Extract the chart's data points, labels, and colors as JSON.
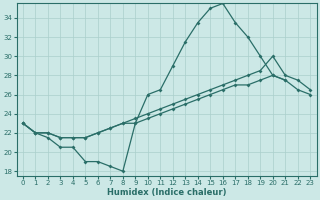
{
  "xlabel": "Humidex (Indice chaleur)",
  "xlim": [
    -0.5,
    23.5
  ],
  "ylim": [
    17.5,
    35.5
  ],
  "yticks": [
    18,
    20,
    22,
    24,
    26,
    28,
    30,
    32,
    34
  ],
  "xticks": [
    0,
    1,
    2,
    3,
    4,
    5,
    6,
    7,
    8,
    9,
    10,
    11,
    12,
    13,
    14,
    15,
    16,
    17,
    18,
    19,
    20,
    21,
    22,
    23
  ],
  "bg_color": "#cce8e6",
  "grid_color": "#aacfcc",
  "line_color": "#2a6e68",
  "line1_x": [
    0,
    1,
    2,
    3,
    4,
    5,
    6,
    7,
    8,
    9,
    10,
    11,
    12,
    13,
    14,
    15,
    16,
    17,
    18,
    19,
    20,
    21
  ],
  "line1_y": [
    23.0,
    22.0,
    21.5,
    20.5,
    20.5,
    19.0,
    19.0,
    18.5,
    18.0,
    23.0,
    26.0,
    26.5,
    29.0,
    31.5,
    33.5,
    35.0,
    35.5,
    33.5,
    32.0,
    30.0,
    28.0,
    27.5
  ],
  "line2_x": [
    0,
    1,
    2,
    3,
    4,
    5,
    6,
    7,
    8,
    9,
    10,
    11,
    12,
    13,
    14,
    15,
    16,
    17,
    18,
    19,
    20,
    21,
    22,
    23
  ],
  "line2_y": [
    23.0,
    22.0,
    22.0,
    21.5,
    21.5,
    21.5,
    22.0,
    22.5,
    23.0,
    23.5,
    24.0,
    24.5,
    25.0,
    25.5,
    26.0,
    26.5,
    27.0,
    27.5,
    28.0,
    28.5,
    30.0,
    28.0,
    27.5,
    26.5
  ],
  "line3_x": [
    0,
    1,
    2,
    3,
    4,
    5,
    6,
    7,
    8,
    9,
    10,
    11,
    12,
    13,
    14,
    15,
    16,
    17,
    18,
    19,
    20,
    21,
    22,
    23
  ],
  "line3_y": [
    23.0,
    22.0,
    22.0,
    21.5,
    21.5,
    21.5,
    22.0,
    22.5,
    23.0,
    23.0,
    23.5,
    24.0,
    24.5,
    25.0,
    25.5,
    26.0,
    26.5,
    27.0,
    27.0,
    27.5,
    28.0,
    27.5,
    26.5,
    26.0
  ]
}
